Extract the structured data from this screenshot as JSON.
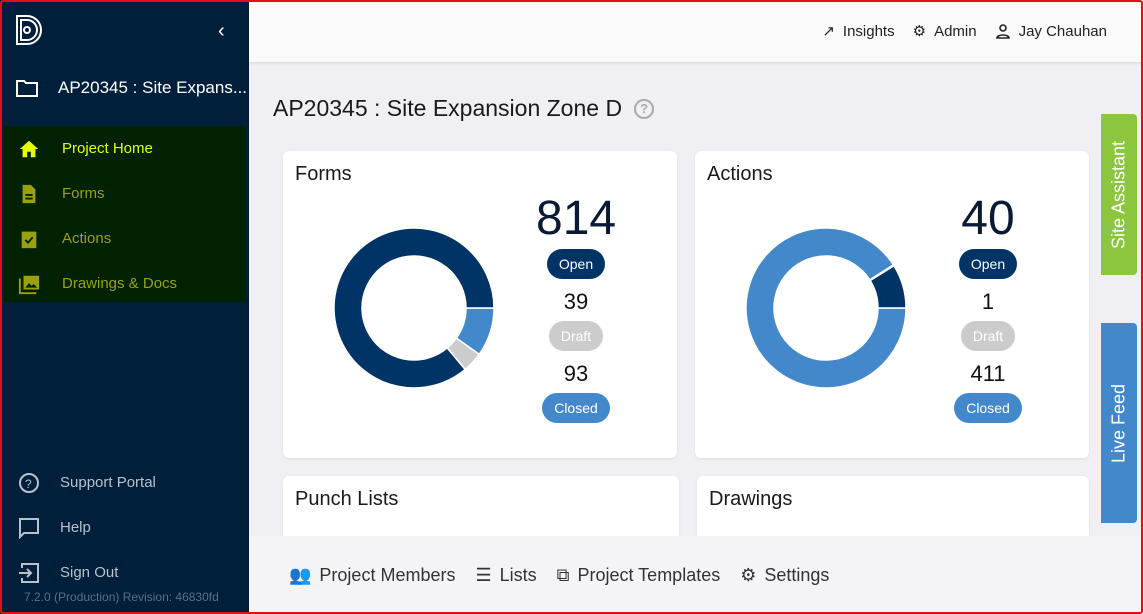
{
  "sidebar": {
    "project": "AP20345 : Site Expans...",
    "items": [
      {
        "label": "Project Home",
        "icon": "home-icon"
      },
      {
        "label": "Forms",
        "icon": "document-icon"
      },
      {
        "label": "Actions",
        "icon": "clipboard-check-icon"
      },
      {
        "label": "Drawings & Docs",
        "icon": "photo-library-icon"
      }
    ],
    "bottom": [
      {
        "label": "Support Portal"
      },
      {
        "label": "Help"
      },
      {
        "label": "Sign Out"
      }
    ],
    "version": "7.2.0 (Production) Revision: 46830fd"
  },
  "topbar": {
    "insights": "Insights",
    "admin": "Admin",
    "user": "Jay Chauhan"
  },
  "page": {
    "title": "AP20345 : Site Expansion Zone D",
    "help": "?"
  },
  "colors": {
    "open": "#003366",
    "draft": "#cccccc",
    "closed": "#4488cc"
  },
  "cards": {
    "forms": {
      "title": "Forms",
      "open": 814,
      "open_label": "Open",
      "draft": 39,
      "draft_label": "Draft",
      "closed": 93,
      "closed_label": "Closed"
    },
    "actions": {
      "title": "Actions",
      "open": 40,
      "open_label": "Open",
      "draft": 1,
      "draft_label": "Draft",
      "closed": 411,
      "closed_label": "Closed"
    },
    "punch": {
      "title": "Punch Lists"
    },
    "drawings": {
      "title": "Drawings"
    }
  },
  "footer": {
    "members": "Project Members",
    "lists": "Lists",
    "templates": "Project Templates",
    "settings": "Settings"
  },
  "side_tabs": {
    "assistant": "Site Assistant",
    "feed": "Live Feed"
  }
}
